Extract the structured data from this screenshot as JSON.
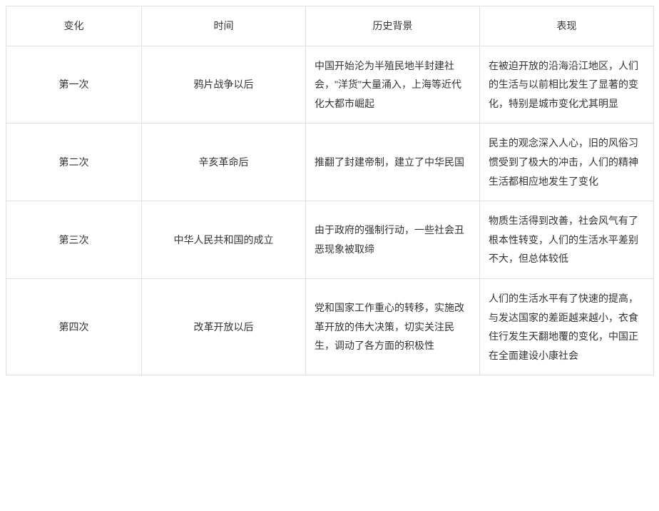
{
  "table": {
    "columns": [
      "变化",
      "时间",
      "历史背景",
      "表现"
    ],
    "rows": [
      {
        "change": "第一次",
        "time": "鸦片战争以后",
        "background": "中国开始沦为半殖民地半封建社会，\"洋货\"大量涌入，上海等近代化大都市崛起",
        "manifestation": "在被迫开放的沿海沿江地区，人们的生活与以前相比发生了显著的变化，特别是城市变化尤其明显"
      },
      {
        "change": "第二次",
        "time": "辛亥革命后",
        "background": "推翻了封建帝制，建立了中华民国",
        "manifestation": "民主的观念深入人心，旧的风俗习惯受到了极大的冲击，人们的精神生活都相应地发生了变化"
      },
      {
        "change": "第三次",
        "time": "中华人民共和国的成立",
        "background": "由于政府的强制行动，一些社会丑恶现象被取缔",
        "manifestation": "物质生活得到改善，社会风气有了根本性转变，人们的生活水平差别不大，但总体较低"
      },
      {
        "change": "第四次",
        "time": "改革开放以后",
        "background": "党和国家工作重心的转移，实施改革开放的伟大决策，切实关注民生，调动了各方面的积极性",
        "manifestation": "人们的生活水平有了快速的提高，与发达国家的差距越来越小，衣食住行发生天翻地覆的变化，中国正在全面建设小康社会"
      }
    ],
    "style": {
      "border_color": "#e0e0e0",
      "text_color": "#333333",
      "background_color": "#ffffff",
      "font_size": 14,
      "line_height": 1.9
    }
  }
}
